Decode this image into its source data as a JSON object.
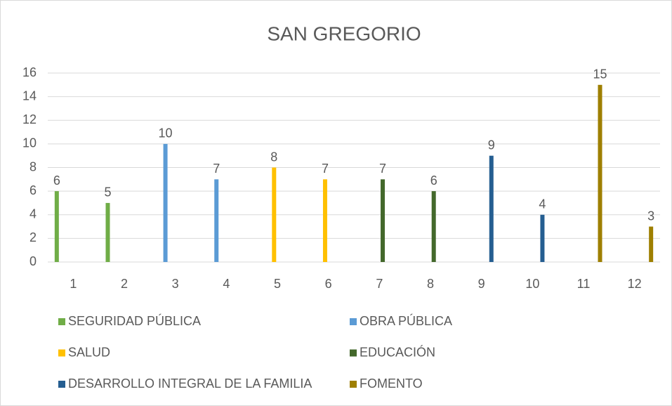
{
  "chart_data": {
    "type": "bar",
    "title": "SAN GREGORIO",
    "categories": [
      1,
      2,
      3,
      4,
      5,
      6,
      7,
      8,
      9,
      10,
      11,
      12
    ],
    "series": [
      {
        "name": "SEGURIDAD PÚBLICA",
        "color": "#70ad47",
        "values": [
          6,
          5,
          null,
          null,
          null,
          null,
          null,
          null,
          null,
          null,
          null,
          null
        ]
      },
      {
        "name": "OBRA PÚBLICA",
        "color": "#5b9bd5",
        "values": [
          null,
          null,
          10,
          7,
          null,
          null,
          null,
          null,
          null,
          null,
          null,
          null
        ]
      },
      {
        "name": "SALUD",
        "color": "#ffc000",
        "values": [
          null,
          null,
          null,
          null,
          8,
          7,
          null,
          null,
          null,
          null,
          null,
          null
        ]
      },
      {
        "name": "EDUCACIÓN",
        "color": "#43682b",
        "values": [
          null,
          null,
          null,
          null,
          null,
          null,
          7,
          6,
          null,
          null,
          null,
          null
        ]
      },
      {
        "name": "DESARROLLO INTEGRAL DE LA FAMILIA",
        "color": "#255e91",
        "values": [
          null,
          null,
          null,
          null,
          null,
          null,
          null,
          null,
          9,
          4,
          null,
          null
        ]
      },
      {
        "name": "FOMENTO",
        "color": "#9e7f00",
        "values": [
          null,
          null,
          null,
          null,
          null,
          null,
          null,
          null,
          null,
          null,
          15,
          3
        ]
      }
    ],
    "ylim": [
      0,
      16
    ],
    "yticks": [
      0,
      2,
      4,
      6,
      8,
      10,
      12,
      14,
      16
    ],
    "grid": true,
    "legend": "bottom"
  }
}
